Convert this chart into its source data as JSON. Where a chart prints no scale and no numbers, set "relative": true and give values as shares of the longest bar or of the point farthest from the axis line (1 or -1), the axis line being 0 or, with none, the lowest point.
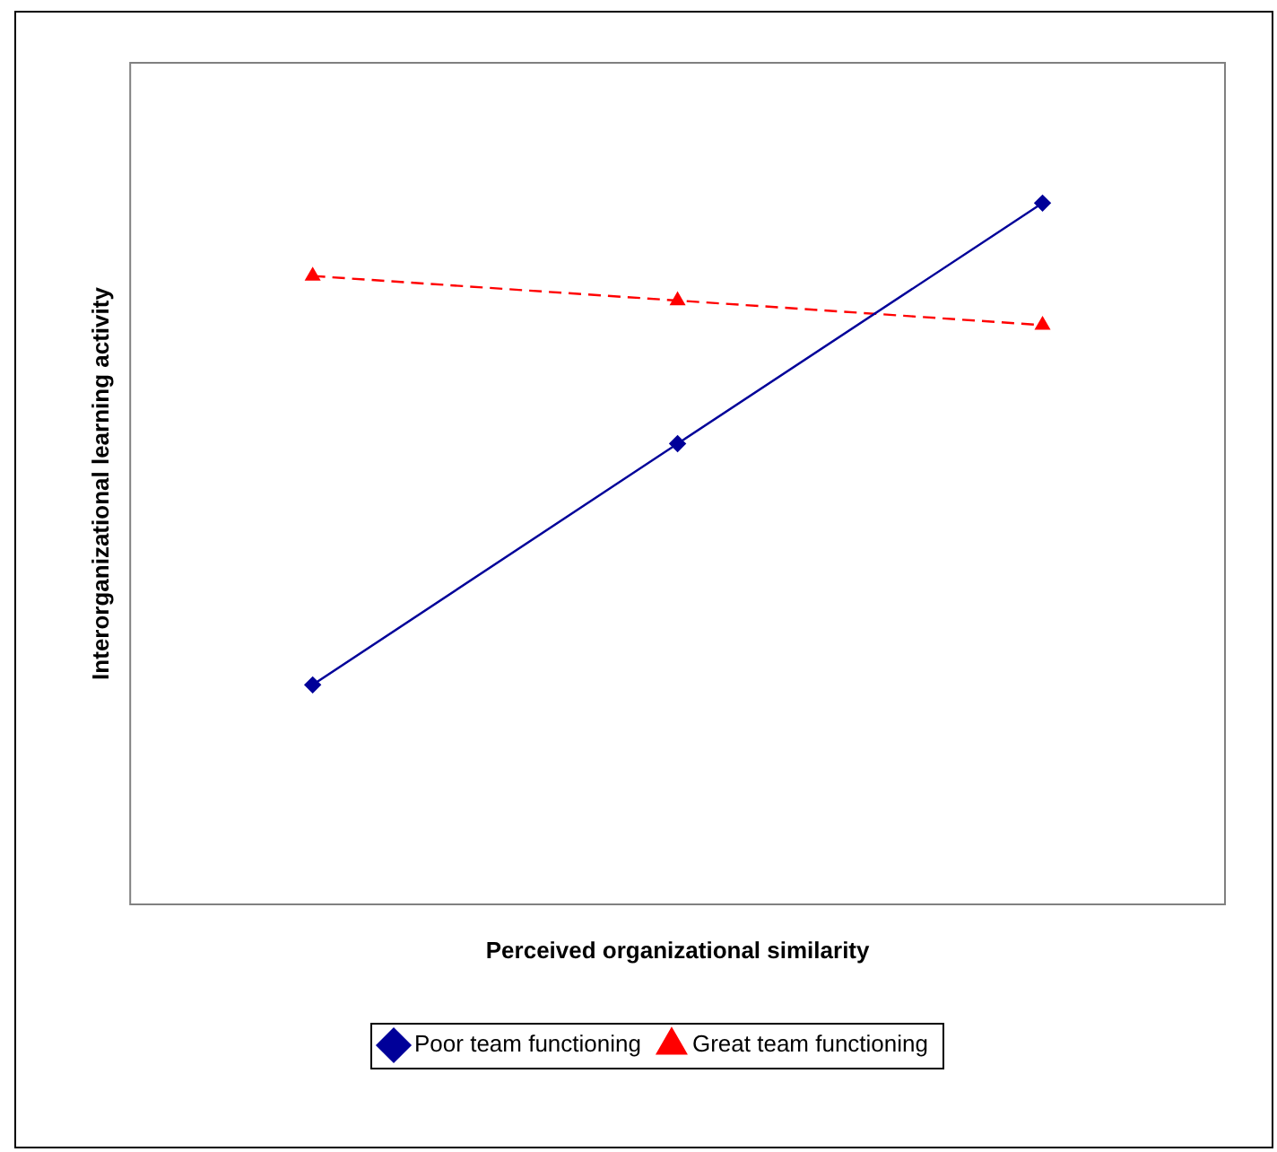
{
  "chart_data": {
    "type": "line",
    "relative": true,
    "xlabel": "Perceived organizational similarity",
    "ylabel": "Interorganizational learning activity",
    "categories": [
      null,
      null,
      null
    ],
    "series": [
      {
        "name": "Poor team functioning",
        "color": "#000099",
        "values": [
          0.313,
          0.657,
          1
        ],
        "marker": "diamond",
        "line_style": "solid"
      },
      {
        "name": "Great team functioning",
        "color": "#ff0000",
        "values": [
          0.896,
          0.861,
          0.826
        ],
        "marker": "triangle",
        "line_style": "dashed"
      }
    ],
    "grid": false,
    "legend": "bottom"
  }
}
